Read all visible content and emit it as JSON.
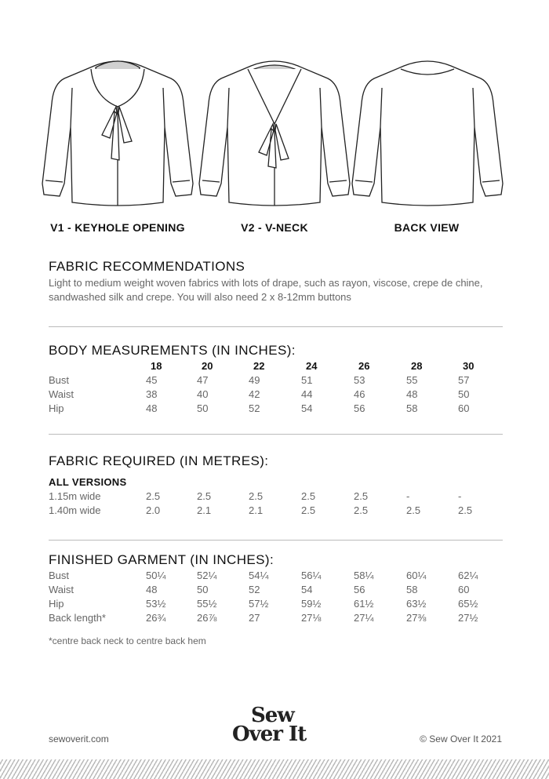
{
  "illustrations": [
    {
      "caption": "V1 - KEYHOLE OPENING",
      "icon": "blouse-front-keyhole"
    },
    {
      "caption": "V2 - V-NECK",
      "icon": "blouse-front-vneck"
    },
    {
      "caption": "BACK VIEW",
      "icon": "blouse-back"
    }
  ],
  "fabric_recommendations": {
    "title": "FABRIC RECOMMENDATIONS",
    "text": "Light to medium weight woven fabrics with lots of drape, such as rayon, viscose, crepe de chine, sandwashed silk and crepe. You will also need 2 x 8-12mm buttons"
  },
  "body_measurements": {
    "title": "BODY MEASUREMENTS (IN INCHES):",
    "sizes": [
      "18",
      "20",
      "22",
      "24",
      "26",
      "28",
      "30"
    ],
    "rows": [
      {
        "label": "Bust",
        "values": [
          "45",
          "47",
          "49",
          "51",
          "53",
          "55",
          "57"
        ]
      },
      {
        "label": "Waist",
        "values": [
          "38",
          "40",
          "42",
          "44",
          "46",
          "48",
          "50"
        ]
      },
      {
        "label": "Hip",
        "values": [
          "48",
          "50",
          "52",
          "54",
          "56",
          "58",
          "60"
        ]
      }
    ]
  },
  "fabric_required": {
    "title": "FABRIC REQUIRED (IN METRES):",
    "subtitle": "ALL VERSIONS",
    "rows": [
      {
        "label": "1.15m wide",
        "values": [
          "2.5",
          "2.5",
          "2.5",
          "2.5",
          "2.5",
          "-",
          "-"
        ]
      },
      {
        "label": "1.40m wide",
        "values": [
          "2.0",
          "2.1",
          "2.1",
          "2.5",
          "2.5",
          "2.5",
          "2.5"
        ]
      }
    ]
  },
  "finished_garment": {
    "title": "FINISHED GARMENT (IN INCHES):",
    "rows": [
      {
        "label": "Bust",
        "values": [
          "50¼",
          "52¼",
          "54¼",
          "56¼",
          "58¼",
          "60¼",
          "62¼"
        ]
      },
      {
        "label": "Waist",
        "values": [
          "48",
          "50",
          "52",
          "54",
          "56",
          "58",
          "60"
        ]
      },
      {
        "label": "Hip",
        "values": [
          "53½",
          "55½",
          "57½",
          "59½",
          "61½",
          "63½",
          "65½"
        ]
      },
      {
        "label": "Back length*",
        "values": [
          "26¾",
          "26⅞",
          "27",
          "27⅛",
          "27¼",
          "27⅜",
          "27½"
        ]
      }
    ],
    "note": "*centre back neck to centre back hem"
  },
  "footer": {
    "website": "sewoverit.com",
    "logo": [
      "Sew",
      "Over It"
    ],
    "copyright": "© Sew Over It 2021"
  }
}
